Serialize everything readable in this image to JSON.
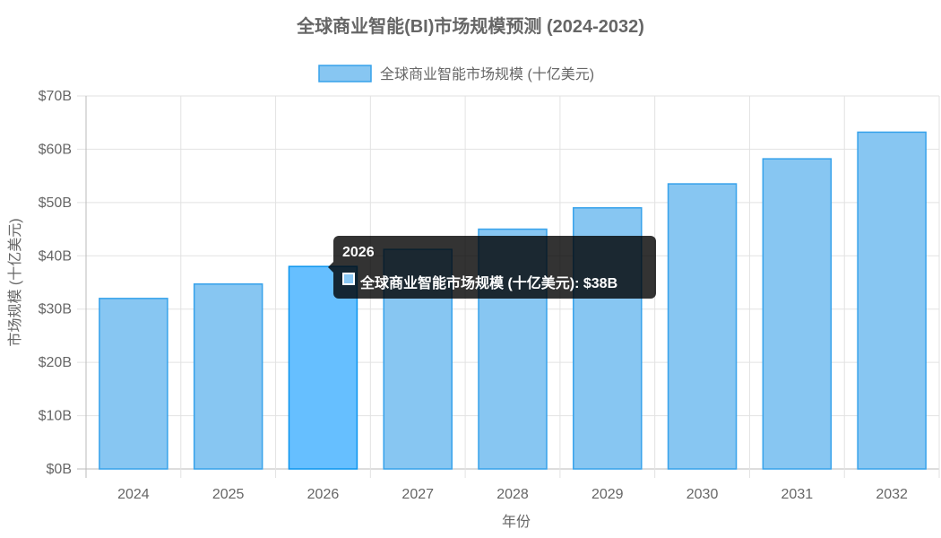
{
  "chart_data": {
    "type": "bar",
    "title": "全球商业智能(BI)市场规模预测 (2024-2032)",
    "xlabel": "年份",
    "ylabel": "市场规模 (十亿美元)",
    "legend": {
      "label": "全球商业智能市场规模 (十亿美元)",
      "placement": "top"
    },
    "categories": [
      "2024",
      "2025",
      "2026",
      "2027",
      "2028",
      "2029",
      "2030",
      "2031",
      "2032"
    ],
    "values": [
      32,
      34.7,
      38,
      41.2,
      45,
      49,
      53.5,
      58.2,
      63.2
    ],
    "ylim": [
      0,
      70
    ],
    "yticks": [
      "$0B",
      "$10B",
      "$20B",
      "$30B",
      "$40B",
      "$50B",
      "$60B",
      "$70B"
    ],
    "grid": true,
    "colors": {
      "fill": "#87c6f2",
      "border": "#36a2eb",
      "hover_fill": "#66bfff",
      "hover_border": "#0b95ee"
    },
    "highlighted_index": 2,
    "tooltip": {
      "title": "2026",
      "body": "全球商业智能市场规模 (十亿美元): $38B"
    }
  }
}
